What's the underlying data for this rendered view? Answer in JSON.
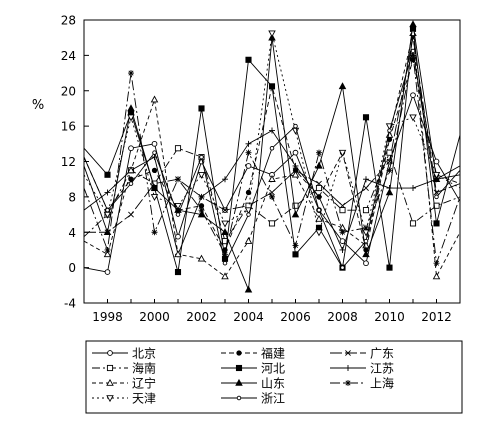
{
  "chart_data": {
    "type": "line",
    "ylabel": "%",
    "xlabel": "",
    "ylim": [
      -4,
      28
    ],
    "yticks": [
      -4,
      0,
      4,
      8,
      12,
      16,
      20,
      24,
      28
    ],
    "xlim": [
      1997,
      2013
    ],
    "xticks": [
      1998,
      2000,
      2002,
      2004,
      2006,
      2008,
      2010,
      2012
    ],
    "x": [
      1997,
      1998,
      1999,
      2000,
      2001,
      2002,
      2003,
      2004,
      2005,
      2006,
      2007,
      2008,
      2009,
      2010,
      2011,
      2012,
      2013
    ],
    "grid": false,
    "legend_position": "bottom",
    "series": [
      {
        "name": "北京",
        "dash": "",
        "marker": "circle-open",
        "values": [
          0,
          -0.5,
          13.5,
          14,
          3.5,
          12,
          6.5,
          11.5,
          10.5,
          13,
          6.5,
          3,
          0.5,
          12,
          19.5,
          12,
          7.5
        ]
      },
      {
        "name": "福建",
        "dash": "5,3",
        "marker": "dot",
        "values": [
          12.5,
          6.5,
          10,
          11,
          6.5,
          7,
          2,
          8.5,
          20.5,
          11,
          8,
          13,
          2,
          14.5,
          23.5,
          10.5,
          9.5
        ]
      },
      {
        "name": "广东",
        "dash": "12,3",
        "marker": "x",
        "values": [
          4,
          4,
          6,
          9.5,
          10,
          8,
          6.5,
          7,
          8.5,
          11,
          9.5,
          7,
          9,
          12,
          26,
          8.5,
          9.5
        ]
      },
      {
        "name": "海南",
        "dash": "8,3,2,3",
        "marker": "square-open",
        "values": [
          3.5,
          6,
          11,
          9.5,
          13.5,
          12.5,
          3,
          7,
          5,
          7,
          9,
          6.5,
          6.5,
          13,
          5,
          7,
          8
        ]
      },
      {
        "name": "河北",
        "dash": "",
        "marker": "square",
        "values": [
          13.5,
          10.5,
          17.5,
          9,
          -0.5,
          18,
          1,
          23.5,
          20.5,
          1.5,
          4.5,
          0,
          17,
          0,
          27,
          5,
          15
        ]
      },
      {
        "name": "江苏",
        "dash": "",
        "marker": "plus",
        "values": [
          6.5,
          8.5,
          11,
          12.5,
          1.5,
          8,
          10,
          14,
          15.5,
          11.5,
          8,
          2,
          10,
          9,
          9,
          10,
          10.5
        ]
      },
      {
        "name": "辽宁",
        "dash": "4,3",
        "marker": "triangle-open",
        "values": [
          3,
          1.5,
          11,
          19,
          1.5,
          1,
          -1,
          3,
          10,
          10.5,
          5.5,
          4.5,
          2.5,
          15,
          26.5,
          -1,
          4
        ]
      },
      {
        "name": "山东",
        "dash": "",
        "marker": "triangle",
        "values": [
          11.5,
          4,
          18,
          9,
          6.5,
          6,
          4,
          -2.5,
          26,
          6,
          11.5,
          20.5,
          1.5,
          8.5,
          27.5,
          10,
          11.5
        ]
      },
      {
        "name": "上海",
        "dash": "10,3,2,3",
        "marker": "star",
        "values": [
          9,
          2,
          22,
          4,
          10,
          6.5,
          1.5,
          13,
          8,
          2.5,
          13,
          4,
          4.5,
          11,
          24,
          0.5,
          8
        ]
      },
      {
        "name": "天津",
        "dash": "2,3",
        "marker": "triangle-down-open",
        "values": [
          10.5,
          6,
          17,
          8,
          7,
          10.5,
          5,
          6.5,
          26.5,
          15.5,
          4,
          13,
          4,
          16,
          17,
          10.5,
          9
        ]
      },
      {
        "name": "浙江",
        "dash": "",
        "marker": "circle-small",
        "values": [
          12.5,
          6.5,
          9.5,
          13,
          6,
          12.5,
          0.5,
          6,
          13.5,
          16,
          6.5,
          0,
          3,
          15.5,
          24.5,
          8,
          11
        ]
      }
    ]
  }
}
